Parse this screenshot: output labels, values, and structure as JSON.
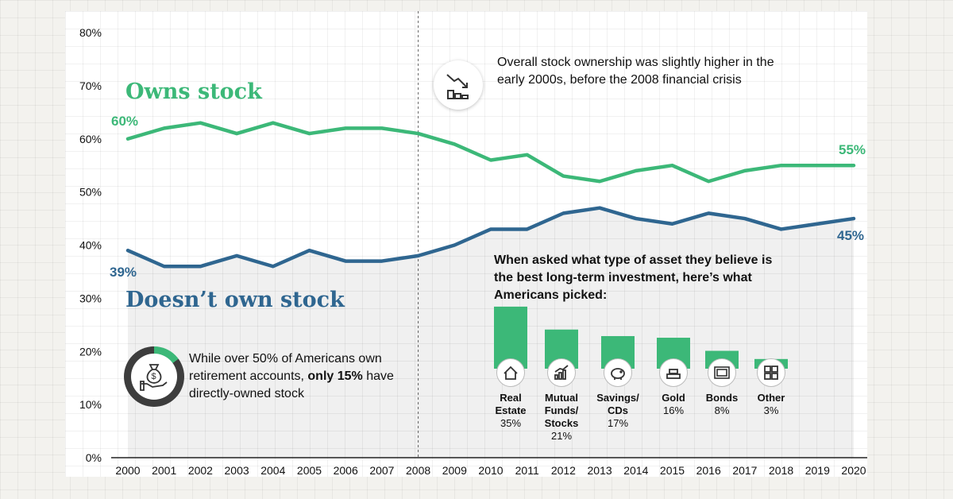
{
  "chart_data": {
    "type": "line",
    "x": [
      2000,
      2001,
      2002,
      2003,
      2004,
      2005,
      2006,
      2007,
      2008,
      2009,
      2010,
      2011,
      2012,
      2013,
      2014,
      2015,
      2016,
      2017,
      2018,
      2019,
      2020
    ],
    "x_tick_labels": [
      "2000",
      "2001",
      "2002",
      "2003",
      "2004",
      "2005",
      "2006",
      "2007",
      "2008",
      "2009",
      "2010",
      "2011",
      "2012",
      "2013",
      "2014",
      "2015",
      "2016",
      "2017",
      "2018",
      "2019",
      "2020"
    ],
    "y_tick_labels": [
      "0%",
      "10%",
      "20%",
      "30%",
      "40%",
      "50%",
      "60%",
      "70%",
      "80%"
    ],
    "ylim": [
      0,
      80
    ],
    "grid": true,
    "highlight_year": 2008,
    "series": [
      {
        "name": "Owns stock",
        "color": "#3cb878",
        "values": [
          60,
          62,
          63,
          61,
          63,
          61,
          62,
          62,
          61,
          59,
          56,
          57,
          53,
          52,
          54,
          55,
          52,
          54,
          55,
          55,
          55
        ],
        "start_label": "60%",
        "end_label": "55%"
      },
      {
        "name": "Doesn’t own stock",
        "color": "#2f6690",
        "values": [
          39,
          36,
          36,
          38,
          36,
          39,
          37,
          37,
          38,
          40,
          43,
          43,
          46,
          47,
          45,
          44,
          46,
          45,
          43,
          44,
          45
        ],
        "start_label": "39%",
        "end_label": "45%"
      }
    ]
  },
  "annotations": {
    "crisis_note": "Overall stock ownership was slightly higher in the early 2000s, before the 2008 financial crisis",
    "crisis_icon": "declining-bar-chart-icon",
    "retirement_note_pre": "While over 50% of Americans own retirement accounts, ",
    "retirement_note_bold": "only 15%",
    "retirement_note_post": " have directly-owned stock",
    "retirement_icon": "money-bag-hand-icon",
    "retirement_ring_percent": 15
  },
  "inset": {
    "question": "When asked what type of asset they believe is the best long-term investment, here’s what Americans picked:",
    "color": "#3cb878",
    "bars": [
      {
        "label": "Real Estate",
        "value": 35,
        "value_label": "35%",
        "icon": "house-icon"
      },
      {
        "label": "Mutual Funds/ Stocks",
        "value": 21,
        "value_label": "21%",
        "icon": "rising-chart-icon"
      },
      {
        "label": "Savings/ CDs",
        "value": 17,
        "value_label": "17%",
        "icon": "piggy-bank-icon"
      },
      {
        "label": "Gold",
        "value": 16,
        "value_label": "16%",
        "icon": "gold-bars-icon"
      },
      {
        "label": "Bonds",
        "value": 8,
        "value_label": "8%",
        "icon": "bond-certificate-icon"
      },
      {
        "label": "Other",
        "value": 3,
        "value_label": "3%",
        "icon": "grid-squares-icon"
      }
    ]
  },
  "colors": {
    "owns": "#3cb878",
    "doesnt_own": "#2f6690",
    "panel": "#ffffff",
    "background": "#f3f2ee"
  }
}
